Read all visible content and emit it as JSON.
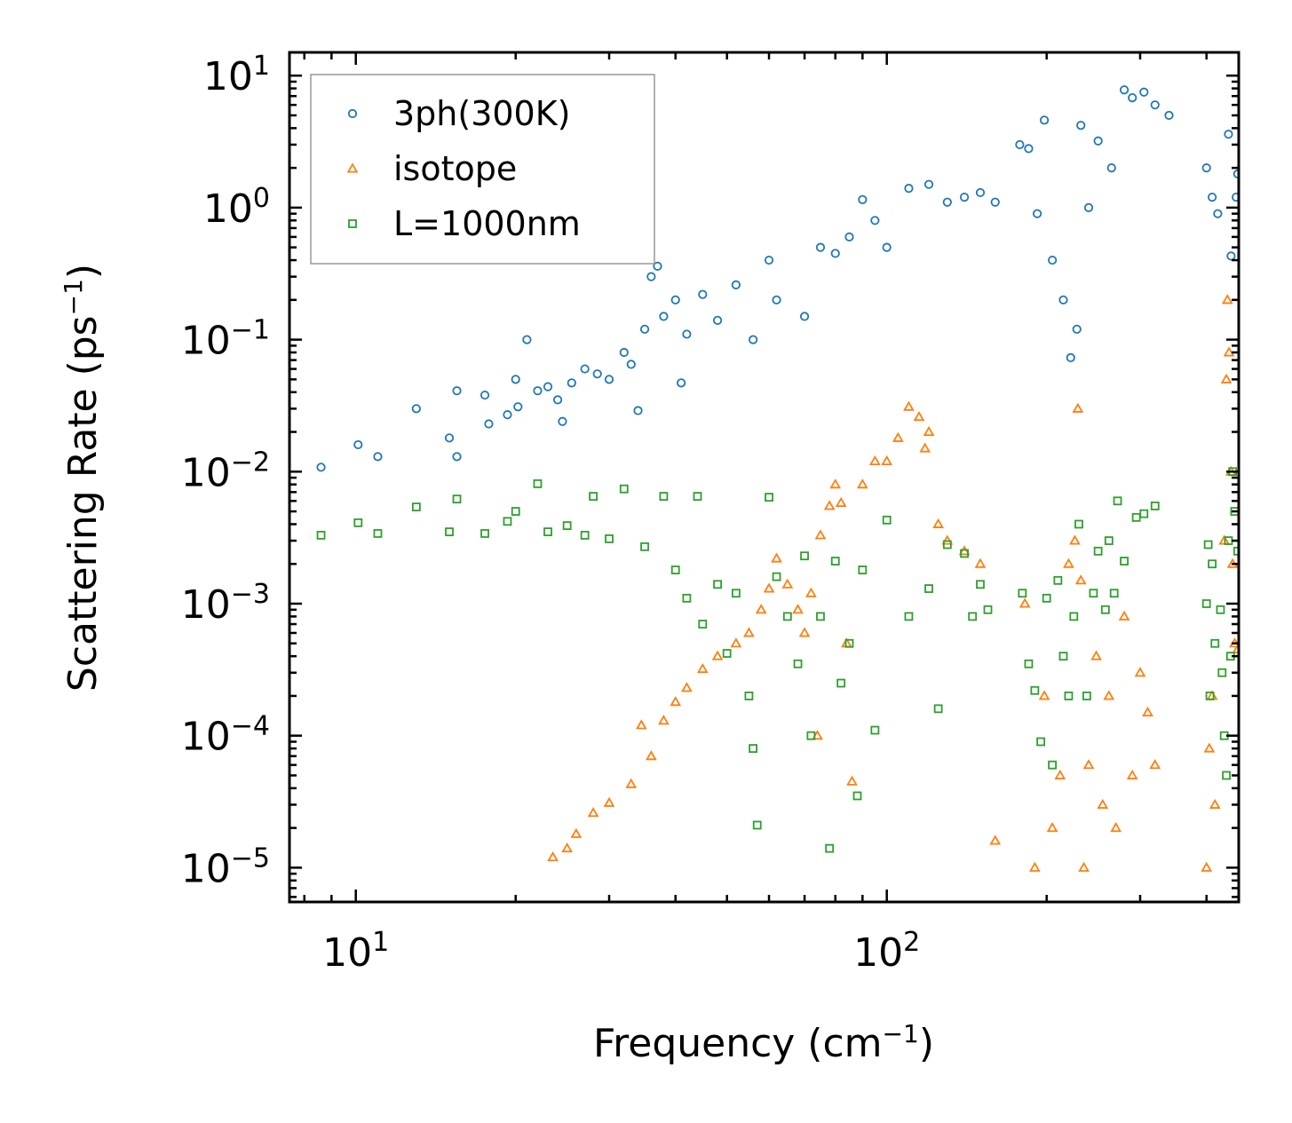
{
  "chart_data": {
    "type": "scatter",
    "x_scale": "log",
    "y_scale": "log",
    "xlabel": "Frequency (cm",
    "xlabel_sup": "−1",
    "xlabel_end": ")",
    "ylabel": "Scattering Rate (ps",
    "ylabel_sup": "−1",
    "ylabel_end": ")",
    "xlim": [
      7.5,
      460
    ],
    "ylim": [
      5.5e-06,
      15
    ],
    "x_major_ticks": [
      {
        "value": 10,
        "base": "10",
        "exp": "1"
      },
      {
        "value": 100,
        "base": "10",
        "exp": "2"
      }
    ],
    "y_major_ticks": [
      {
        "value": 10,
        "base": "10",
        "exp": "1"
      },
      {
        "value": 1,
        "base": "10",
        "exp": "0"
      },
      {
        "value": 0.1,
        "base": "10",
        "exp": "−1"
      },
      {
        "value": 0.01,
        "base": "10",
        "exp": "−2"
      },
      {
        "value": 0.001,
        "base": "10",
        "exp": "−3"
      },
      {
        "value": 0.0001,
        "base": "10",
        "exp": "−4"
      },
      {
        "value": 1e-05,
        "base": "10",
        "exp": "−5"
      }
    ],
    "legend_position": "top-left",
    "series": [
      {
        "name": "3ph(300K)",
        "marker": "circle",
        "color": "#1f77b4",
        "points": [
          [
            8.6,
            0.0108
          ],
          [
            10.1,
            0.016
          ],
          [
            11.0,
            0.013
          ],
          [
            13.0,
            0.03
          ],
          [
            15.0,
            0.018
          ],
          [
            15.5,
            0.013
          ],
          [
            15.5,
            0.041
          ],
          [
            17.5,
            0.038
          ],
          [
            17.8,
            0.023
          ],
          [
            19.3,
            0.027
          ],
          [
            20.0,
            0.05
          ],
          [
            20.2,
            0.031
          ],
          [
            21.0,
            0.1
          ],
          [
            22.0,
            0.041
          ],
          [
            23.0,
            0.044
          ],
          [
            24.0,
            0.035
          ],
          [
            24.5,
            0.024
          ],
          [
            25.5,
            0.047
          ],
          [
            27.0,
            0.06
          ],
          [
            28.5,
            0.055
          ],
          [
            30.0,
            0.05
          ],
          [
            32.0,
            0.08
          ],
          [
            33.0,
            0.065
          ],
          [
            34.0,
            0.029
          ],
          [
            35.0,
            0.12
          ],
          [
            36.0,
            0.3
          ],
          [
            37.0,
            0.36
          ],
          [
            38.0,
            0.15
          ],
          [
            40.0,
            0.2
          ],
          [
            41.0,
            0.047
          ],
          [
            42.0,
            0.11
          ],
          [
            45.0,
            0.22
          ],
          [
            48.0,
            0.14
          ],
          [
            52.0,
            0.26
          ],
          [
            56.0,
            0.1
          ],
          [
            60.0,
            0.4
          ],
          [
            62.0,
            0.2
          ],
          [
            70.0,
            0.15
          ],
          [
            75.0,
            0.5
          ],
          [
            80.0,
            0.45
          ],
          [
            85.0,
            0.6
          ],
          [
            90.0,
            1.15
          ],
          [
            95.0,
            0.8
          ],
          [
            100.0,
            0.5
          ],
          [
            110.0,
            1.4
          ],
          [
            120.0,
            1.5
          ],
          [
            130.0,
            1.1
          ],
          [
            140.0,
            1.2
          ],
          [
            150.0,
            1.3
          ],
          [
            160.0,
            1.1
          ],
          [
            178.0,
            3.0
          ],
          [
            185.0,
            2.8
          ],
          [
            192.0,
            0.9
          ],
          [
            198.0,
            4.6
          ],
          [
            205.0,
            0.4
          ],
          [
            215.0,
            0.2
          ],
          [
            222.0,
            0.073
          ],
          [
            228.0,
            0.12
          ],
          [
            232.0,
            4.2
          ],
          [
            240.0,
            1.0
          ],
          [
            250.0,
            3.2
          ],
          [
            265.0,
            2.0
          ],
          [
            280.0,
            7.8
          ],
          [
            290.0,
            6.8
          ],
          [
            305.0,
            7.5
          ],
          [
            320.0,
            6.0
          ],
          [
            340.0,
            5.0
          ],
          [
            400.0,
            2.0
          ],
          [
            410.0,
            1.2
          ],
          [
            420.0,
            0.9
          ],
          [
            440.0,
            3.6
          ],
          [
            445.0,
            0.43
          ],
          [
            455.0,
            1.2
          ],
          [
            458.0,
            1.8
          ]
        ]
      },
      {
        "name": "isotope",
        "marker": "triangle",
        "color": "#ff7f0e",
        "points": [
          [
            23.5,
            1.2e-05
          ],
          [
            25.0,
            1.4e-05
          ],
          [
            26.0,
            1.8e-05
          ],
          [
            28.0,
            2.6e-05
          ],
          [
            30.0,
            3.1e-05
          ],
          [
            33.0,
            4.3e-05
          ],
          [
            34.5,
            0.00012
          ],
          [
            36.0,
            7e-05
          ],
          [
            38.0,
            0.00013
          ],
          [
            40.0,
            0.00018
          ],
          [
            42.0,
            0.00023
          ],
          [
            45.0,
            0.00032
          ],
          [
            48.0,
            0.0004
          ],
          [
            52.0,
            0.0005
          ],
          [
            55.0,
            0.0006
          ],
          [
            58.0,
            0.0009
          ],
          [
            60.0,
            0.0013
          ],
          [
            62.0,
            0.0022
          ],
          [
            65.0,
            0.0014
          ],
          [
            68.0,
            0.0009
          ],
          [
            70.0,
            0.0006
          ],
          [
            72.0,
            0.0012
          ],
          [
            74.0,
            0.0001
          ],
          [
            75.0,
            0.0033
          ],
          [
            78.0,
            0.0055
          ],
          [
            80.0,
            0.008
          ],
          [
            82.0,
            0.0058
          ],
          [
            84.0,
            0.0005
          ],
          [
            86.0,
            4.5e-05
          ],
          [
            90.0,
            0.008
          ],
          [
            95.0,
            0.012
          ],
          [
            100.0,
            0.012
          ],
          [
            105.0,
            0.018
          ],
          [
            110.0,
            0.031
          ],
          [
            115.0,
            0.026
          ],
          [
            118.0,
            0.015
          ],
          [
            120.0,
            0.02
          ],
          [
            125.0,
            0.004
          ],
          [
            130.0,
            0.003
          ],
          [
            140.0,
            0.0025
          ],
          [
            150.0,
            0.002
          ],
          [
            160.0,
            1.6e-05
          ],
          [
            182.0,
            0.001
          ],
          [
            190.0,
            1e-05
          ],
          [
            198.0,
            0.0002
          ],
          [
            205.0,
            2e-05
          ],
          [
            212.0,
            5e-05
          ],
          [
            220.0,
            0.002
          ],
          [
            226.0,
            0.003
          ],
          [
            229.0,
            0.03
          ],
          [
            232.0,
            0.0015
          ],
          [
            235.0,
            1e-05
          ],
          [
            240.0,
            6e-05
          ],
          [
            248.0,
            0.0004
          ],
          [
            255.0,
            3e-05
          ],
          [
            262.0,
            0.0002
          ],
          [
            270.0,
            2e-05
          ],
          [
            280.0,
            0.0008
          ],
          [
            290.0,
            5e-05
          ],
          [
            300.0,
            0.0003
          ],
          [
            310.0,
            0.00015
          ],
          [
            320.0,
            6e-05
          ],
          [
            400.0,
            1e-05
          ],
          [
            405.0,
            8e-05
          ],
          [
            410.0,
            0.0002
          ],
          [
            415.0,
            3e-05
          ],
          [
            432.0,
            0.003
          ],
          [
            436.0,
            0.05
          ],
          [
            438.0,
            0.2
          ],
          [
            441.0,
            0.08
          ],
          [
            445.0,
            0.01
          ],
          [
            448.0,
            0.002
          ],
          [
            452.0,
            0.0005
          ],
          [
            458.0,
            0.00045
          ]
        ]
      },
      {
        "name": "L=1000nm",
        "marker": "square",
        "color": "#2ca02c",
        "points": [
          [
            8.6,
            0.0033
          ],
          [
            10.1,
            0.0041
          ],
          [
            11.0,
            0.0034
          ],
          [
            13.0,
            0.0054
          ],
          [
            15.0,
            0.0035
          ],
          [
            15.5,
            0.0062
          ],
          [
            17.5,
            0.0034
          ],
          [
            19.3,
            0.0042
          ],
          [
            20.0,
            0.005
          ],
          [
            22.0,
            0.0081
          ],
          [
            23.0,
            0.0035
          ],
          [
            25.0,
            0.0039
          ],
          [
            27.0,
            0.0033
          ],
          [
            28.0,
            0.0065
          ],
          [
            30.0,
            0.0031
          ],
          [
            32.0,
            0.0074
          ],
          [
            35.0,
            0.0027
          ],
          [
            38.0,
            0.0065
          ],
          [
            40.0,
            0.0018
          ],
          [
            42.0,
            0.0011
          ],
          [
            44.0,
            0.0065
          ],
          [
            45.0,
            0.0007
          ],
          [
            48.0,
            0.0014
          ],
          [
            50.0,
            0.00042
          ],
          [
            52.0,
            0.0012
          ],
          [
            55.0,
            0.0002
          ],
          [
            56.0,
            8e-05
          ],
          [
            57.0,
            2.1e-05
          ],
          [
            60.0,
            0.0064
          ],
          [
            62.0,
            0.0016
          ],
          [
            65.0,
            0.0008
          ],
          [
            68.0,
            0.00035
          ],
          [
            70.0,
            0.0023
          ],
          [
            72.0,
            0.0001
          ],
          [
            75.0,
            0.0008
          ],
          [
            78.0,
            1.4e-05
          ],
          [
            80.0,
            0.0021
          ],
          [
            82.0,
            0.00025
          ],
          [
            85.0,
            0.0005
          ],
          [
            88.0,
            3.5e-05
          ],
          [
            90.0,
            0.0018
          ],
          [
            95.0,
            0.00011
          ],
          [
            100.0,
            0.0043
          ],
          [
            110.0,
            0.0008
          ],
          [
            120.0,
            0.0013
          ],
          [
            125.0,
            0.00016
          ],
          [
            130.0,
            0.0028
          ],
          [
            140.0,
            0.0024
          ],
          [
            145.0,
            0.0008
          ],
          [
            150.0,
            0.0014
          ],
          [
            155.0,
            0.0009
          ],
          [
            180.0,
            0.0012
          ],
          [
            185.0,
            0.00035
          ],
          [
            190.0,
            0.00022
          ],
          [
            195.0,
            9e-05
          ],
          [
            200.0,
            0.0011
          ],
          [
            205.0,
            6e-05
          ],
          [
            210.0,
            0.0015
          ],
          [
            215.0,
            0.0004
          ],
          [
            220.0,
            0.0002
          ],
          [
            225.0,
            0.0008
          ],
          [
            230.0,
            0.004
          ],
          [
            238.0,
            0.0002
          ],
          [
            245.0,
            0.0012
          ],
          [
            250.0,
            0.0025
          ],
          [
            258.0,
            0.0009
          ],
          [
            262.0,
            0.003
          ],
          [
            268.0,
            0.0012
          ],
          [
            272.0,
            0.006
          ],
          [
            280.0,
            0.0021
          ],
          [
            295.0,
            0.0045
          ],
          [
            305.0,
            0.0048
          ],
          [
            320.0,
            0.0055
          ],
          [
            400.0,
            0.001
          ],
          [
            403.0,
            0.0028
          ],
          [
            406.0,
            0.0002
          ],
          [
            410.0,
            0.002
          ],
          [
            415.0,
            0.0005
          ],
          [
            425.0,
            0.0009
          ],
          [
            428.0,
            0.0003
          ],
          [
            432.0,
            0.0001
          ],
          [
            436.0,
            5e-05
          ],
          [
            440.0,
            0.003
          ],
          [
            444.0,
            0.0004
          ],
          [
            448.0,
            0.01
          ],
          [
            452.0,
            0.005
          ],
          [
            458.0,
            0.0025
          ]
        ]
      }
    ]
  }
}
